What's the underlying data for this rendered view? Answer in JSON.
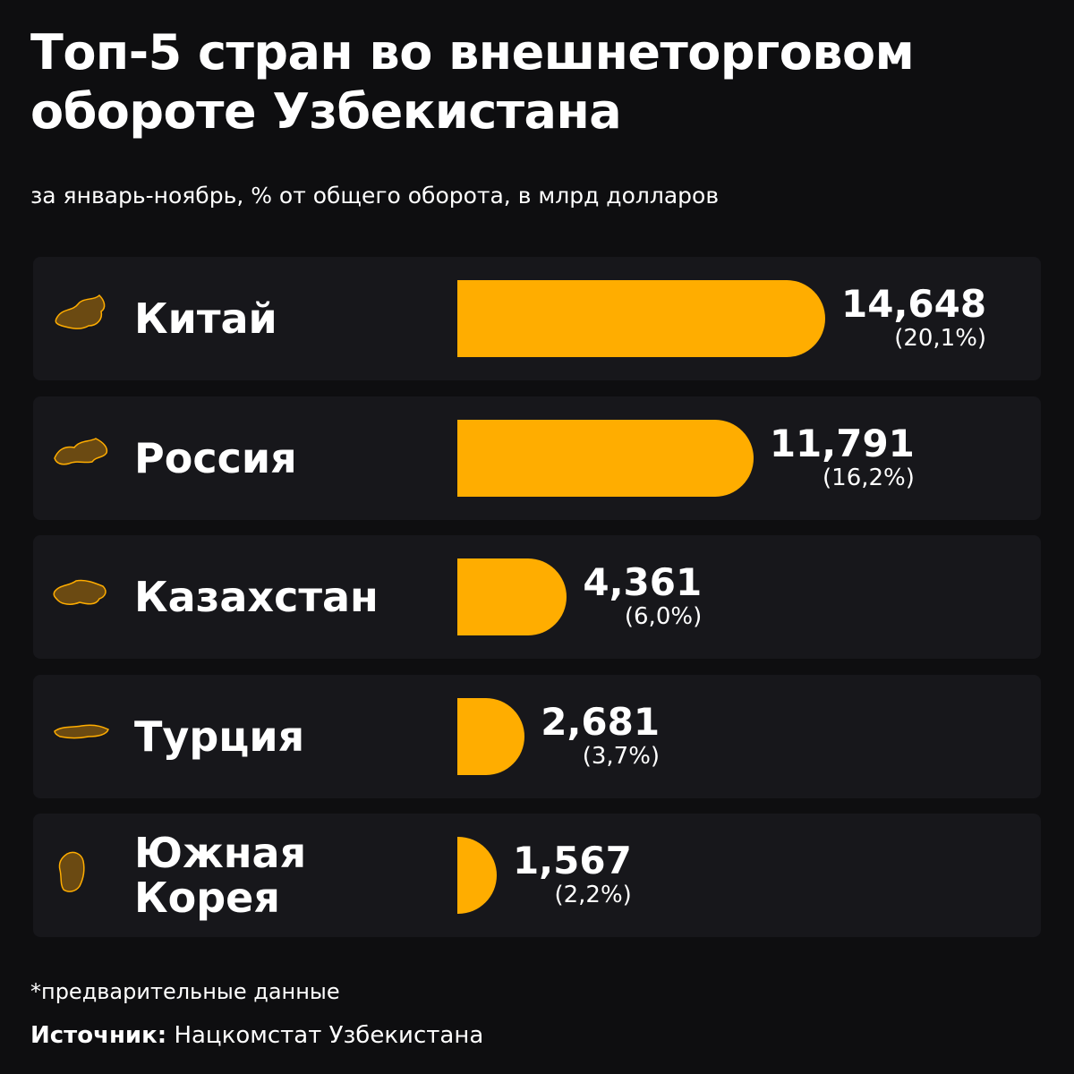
{
  "chart_data": {
    "type": "bar",
    "title": "Топ-5 стран во внешнеторговом обороте Узбекистана",
    "subtitle": "за январь-ноябрь, % от общего оборота, в млрд долларов",
    "categories": [
      "Китай",
      "Россия",
      "Казахстан",
      "Турция",
      "Южная Корея"
    ],
    "values": [
      14.648,
      11.791,
      4.361,
      2.681,
      1.567
    ],
    "value_labels": [
      "14,648",
      "11,791",
      "4,361",
      "2,681",
      "1,567"
    ],
    "share_labels": [
      "(20,1%)",
      "(16,2%)",
      "(6,0%)",
      "(3,7%)",
      "(2,2%)"
    ],
    "color": "#ffad00",
    "note": "*предварительные данные",
    "source_label": "Источник:",
    "source": "Нацкомстат Узбекистана"
  }
}
